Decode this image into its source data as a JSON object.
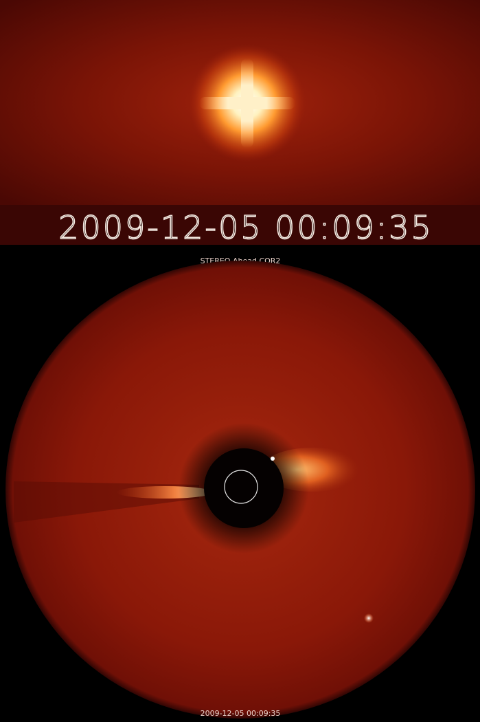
{
  "top_timestamp": "2009-12-05 00:09:35",
  "instrument_label": "STEREO Ahead COR2",
  "bottom_timestamp": "2009-12-05 00:09:35"
}
